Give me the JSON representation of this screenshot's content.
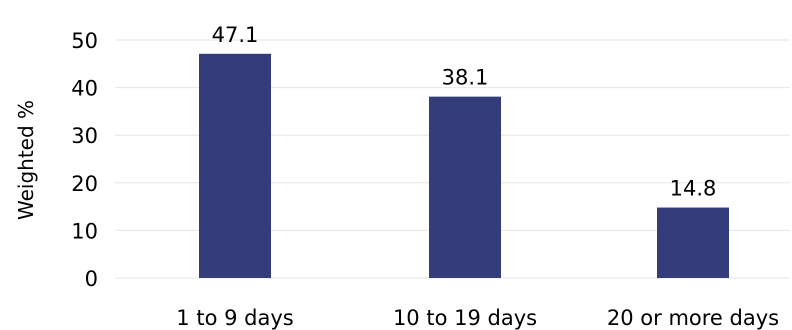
{
  "chart_data": {
    "type": "bar",
    "categories": [
      "1 to 9 days",
      "10 to 19 days",
      "20 or more days"
    ],
    "values": [
      47.1,
      38.1,
      14.8
    ],
    "value_labels": [
      "47.1",
      "38.1",
      "14.8"
    ],
    "title": "",
    "xlabel": "",
    "ylabel": "Weighted %",
    "ylim": [
      0,
      50
    ],
    "yticks": [
      0,
      10,
      20,
      30,
      40,
      50
    ],
    "grid": true,
    "bar_color": "#353c7c"
  }
}
